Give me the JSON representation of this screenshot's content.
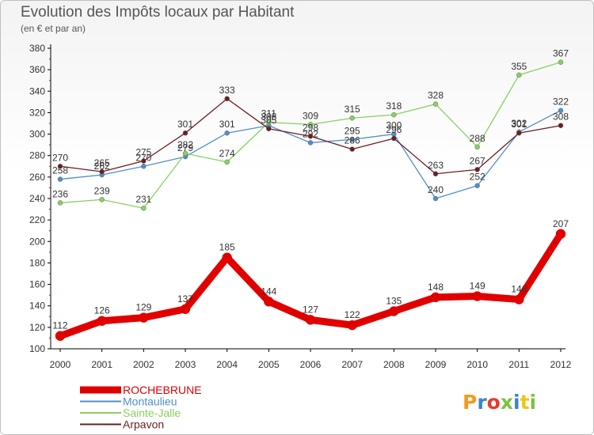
{
  "title": "Evolution des Impôts locaux par Habitant",
  "subtitle": "(en € et par an)",
  "logo_text": "Proxiti",
  "chart_data": {
    "type": "line",
    "x": [
      "2000",
      "2001",
      "2002",
      "2003",
      "2004",
      "2005",
      "2006",
      "2007",
      "2008",
      "2009",
      "2010",
      "2011",
      "2012"
    ],
    "y_ticks": [
      "100",
      "120",
      "140",
      "160",
      "180",
      "200",
      "220",
      "240",
      "260",
      "280",
      "300",
      "320",
      "340",
      "360",
      "380"
    ],
    "ylim": [
      100,
      380
    ],
    "grid": false,
    "legend_position": "bottom-left",
    "series": [
      {
        "name": "ROCHEBRUNE",
        "color": "#e00000",
        "values": [
          112,
          126,
          129,
          137,
          185,
          144,
          127,
          122,
          135,
          148,
          149,
          146,
          207
        ]
      },
      {
        "name": "Montaulieu",
        "color": "#4f8fcc",
        "values": [
          258,
          262,
          270,
          279,
          301,
          308,
          292,
          295,
          300,
          240,
          252,
          302,
          322
        ]
      },
      {
        "name": "Sainte-Jalle",
        "color": "#88d060",
        "values": [
          236,
          239,
          231,
          282,
          274,
          311,
          309,
          315,
          318,
          328,
          288,
          355,
          367
        ]
      },
      {
        "name": "Arpavon",
        "color": "#6b1e22",
        "values": [
          270,
          265,
          275,
          301,
          333,
          305,
          298,
          286,
          296,
          263,
          267,
          301,
          308
        ]
      }
    ]
  }
}
